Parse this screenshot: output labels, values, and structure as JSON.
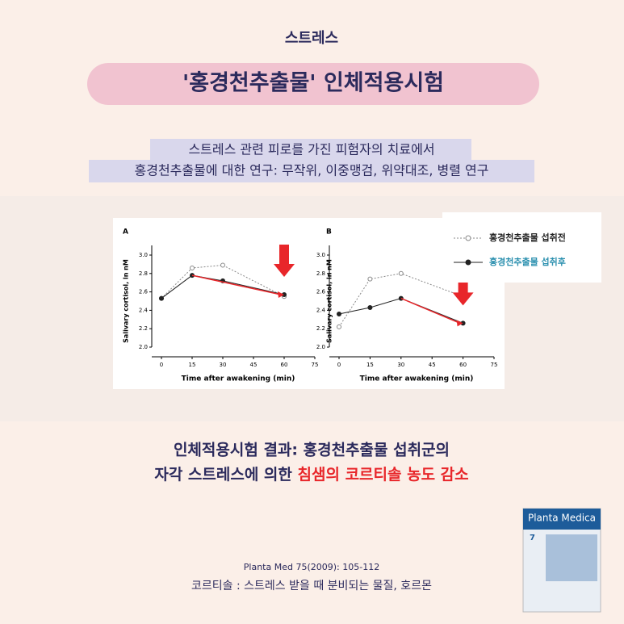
{
  "header": {
    "tag": "스트레스",
    "title": "'홍경천추출물' 인체적용시험",
    "subtitle": [
      "스트레스 관련 피로를 가진 피험자의 치료에서",
      "홍경천추출물에 대한 연구: 무작위, 이중맹검, 위약대조, 병렬 연구"
    ]
  },
  "chart_data": [
    {
      "type": "line",
      "panel": "A",
      "ylabel": "Salivary cortisol, ln nM",
      "xlabel": "Time after awakening (min)",
      "x": [
        0,
        15,
        30,
        60
      ],
      "xlim": [
        0,
        75
      ],
      "xticks": [
        0,
        15,
        30,
        45,
        60,
        75
      ],
      "ylim": [
        2.0,
        3.0
      ],
      "yticks": [
        {
          "value": 2.0,
          "label": "2.0"
        },
        {
          "value": 2.2,
          "label": "2.2"
        },
        {
          "value": 2.4,
          "label": "2.4"
        },
        {
          "value": 2.6,
          "label": "2.6"
        },
        {
          "value": 2.8,
          "label": "2.8"
        },
        {
          "value": 3.0,
          "label": "3.0"
        }
      ],
      "series": [
        {
          "name": "홍경천추출물 섭취전",
          "color": "#888888",
          "values": [
            2.53,
            2.86,
            2.89,
            2.55
          ]
        },
        {
          "name": "홍경천추출물 섭취후",
          "color": "#222222",
          "values": [
            2.53,
            2.78,
            2.72,
            2.57
          ]
        }
      ]
    },
    {
      "type": "line",
      "panel": "B",
      "ylabel": "Salivary cortisol, ln nM",
      "xlabel": "Time after awakening (min)",
      "x": [
        0,
        15,
        30,
        60
      ],
      "xlim": [
        0,
        75
      ],
      "xticks": [
        0,
        15,
        30,
        45,
        60,
        75
      ],
      "ylim": [
        2.0,
        3.0
      ],
      "yticks": [
        {
          "value": 2.0,
          "label": "2.0"
        },
        {
          "value": 2.2,
          "label": "2.2"
        },
        {
          "value": 2.4,
          "label": "2.4"
        },
        {
          "value": 2.6,
          "label": "2.6"
        },
        {
          "value": 2.8,
          "label": "2.8"
        },
        {
          "value": 3.0,
          "label": "3.0"
        }
      ],
      "series": [
        {
          "name": "홍경천추출물 섭취전",
          "color": "#888888",
          "values": [
            2.22,
            2.74,
            2.8,
            2.55
          ]
        },
        {
          "name": "홍경천추출물 섭취후",
          "color": "#222222",
          "values": [
            2.36,
            2.43,
            2.53,
            2.26
          ]
        }
      ]
    }
  ],
  "result": {
    "line1": "인체적용시험 결과: 홍경천추출물 섭취군의",
    "line2_prefix": "자각 스트레스에 의한 ",
    "line2_highlight": "침샘의 코르티솔 농도 감소"
  },
  "footer": {
    "citation": "Planta Med 75(2009): 105-112",
    "note": "코르티솔 :  스트레스 받을 때 분비되는 물질, 호르몬"
  },
  "cover": {
    "title": "Planta Medica",
    "issue": "7"
  }
}
